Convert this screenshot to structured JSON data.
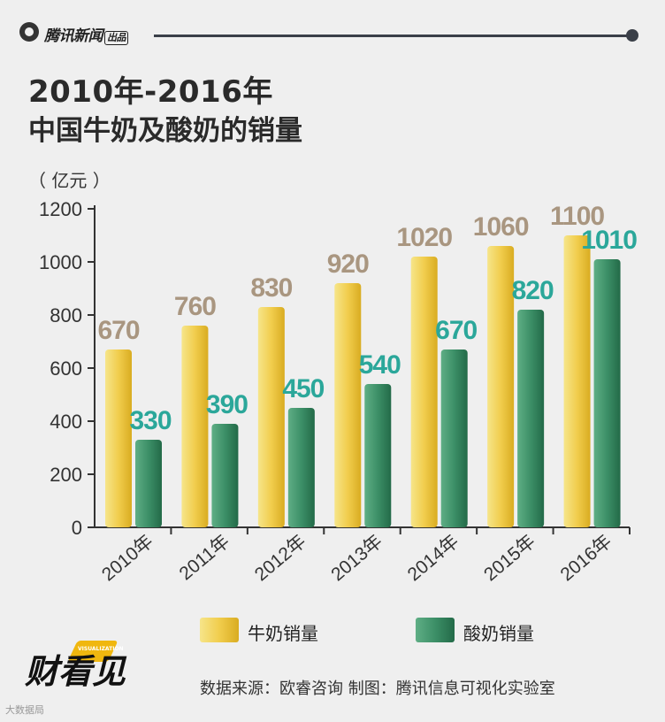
{
  "header": {
    "brand": "腾讯新闻",
    "brand_tag": "出品"
  },
  "title": {
    "line1": "2010年-2016年",
    "line2": "中国牛奶及酸奶的销量"
  },
  "unit_label": "（ 亿元 ）",
  "legend": {
    "milk": "牛奶销量",
    "yogurt": "酸奶销量"
  },
  "source": "数据来源：欧睿咨询 制图：腾讯信息可视化实验室",
  "bottom_logo": {
    "text": "财看见",
    "small_text": "VISUALIZATION"
  },
  "corner_mark": "大数据局",
  "colors": {
    "milk_bar": "#f1cd4d",
    "milk_label": "#a99680",
    "yogurt_bar": "#3c8f67",
    "yogurt_label": "#2ba79a",
    "axis": "#333333"
  },
  "chart_data": {
    "type": "bar",
    "categories": [
      "2010年",
      "2011年",
      "2012年",
      "2013年",
      "2014年",
      "2015年",
      "2016年"
    ],
    "series": [
      {
        "name": "牛奶销量",
        "values": [
          670,
          760,
          830,
          920,
          1020,
          1060,
          1100
        ]
      },
      {
        "name": "酸奶销量",
        "values": [
          330,
          390,
          450,
          540,
          670,
          820,
          1010
        ]
      }
    ],
    "yticks": [
      0,
      200,
      400,
      600,
      800,
      1000,
      1200
    ],
    "ylim": [
      0,
      1200
    ],
    "ylabel": "亿元",
    "legend_position": "bottom",
    "grid": false
  }
}
